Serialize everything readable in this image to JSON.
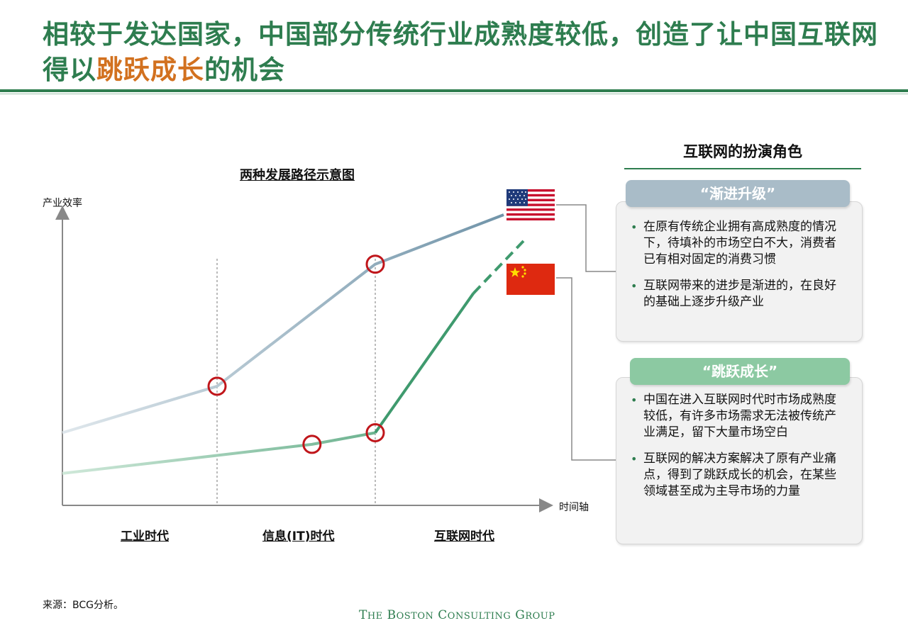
{
  "header": {
    "title_part1": "相较于发达国家，中国部分传统行业成熟度较低，创造了让中国互联网得以",
    "title_highlight": "跳跃成长",
    "title_part2": "的机会"
  },
  "colors": {
    "brand_green": "#2e7d4f",
    "highlight_orange": "#d2711f",
    "us_line": "#6f93a8",
    "cn_line": "#3f9a6e",
    "circle_marker": "#c0161b",
    "tag_gray_blue": "#a9bcc8",
    "tag_green": "#8cc9a2"
  },
  "chart_data": {
    "type": "line",
    "title": "两种发展路径示意图",
    "ylabel": "产业效率",
    "xlabel": "时间轴",
    "x_categories": [
      "工业时代",
      "信息(IT)时代",
      "互联网时代"
    ],
    "era_boundaries": [
      1,
      2
    ],
    "xlim": [
      0,
      3
    ],
    "ylim": [
      0,
      10
    ],
    "grid": false,
    "series": [
      {
        "flag": "us-flag",
        "color": "#6f93a8",
        "points": [
          [
            0,
            2.5
          ],
          [
            1,
            4.1
          ],
          [
            2,
            8.3
          ],
          [
            2.85,
            10.0
          ]
        ],
        "highlighted": [
          1,
          2
        ]
      },
      {
        "flag": "cn-flag",
        "color": "#3f9a6e",
        "points": [
          [
            0,
            1.1
          ],
          [
            1.6,
            2.1
          ],
          [
            2,
            2.5
          ]
        ],
        "dashed_extension": [
          [
            2,
            2.5
          ],
          [
            2.65,
            7.3
          ],
          [
            3.0,
            9.2
          ]
        ],
        "highlighted": [
          1,
          2
        ]
      }
    ]
  },
  "panel": {
    "title": "互联网的扮演角色",
    "gradual": {
      "tag": "“渐进升级”",
      "bullets": [
        "在原有传统企业拥有高成熟度的情况下，待填补的市场空白不大，消费者已有相对固定的消费习惯",
        "互联网带来的进步是渐进的，在良好的基础上逐步升级产业"
      ]
    },
    "leapfrog": {
      "tag": "“跳跃成长”",
      "bullets": [
        "中国在进入互联网时代时市场成熟度较低，有许多市场需求无法被传统产业满足，留下大量市场空白",
        "互联网的解决方案解决了原有产业痛点，得到了跳跃成长的机会，在某些领域甚至成为主导市场的力量"
      ]
    }
  },
  "footer": {
    "source": "来源：BCG分析。",
    "logo_the": "T",
    "logo_he": "HE",
    "logo_b": "B",
    "logo_oston": "OSTON",
    "logo_c": "C",
    "logo_onsulting": "ONSULTING",
    "logo_g": "G",
    "logo_roup": "ROUP"
  }
}
